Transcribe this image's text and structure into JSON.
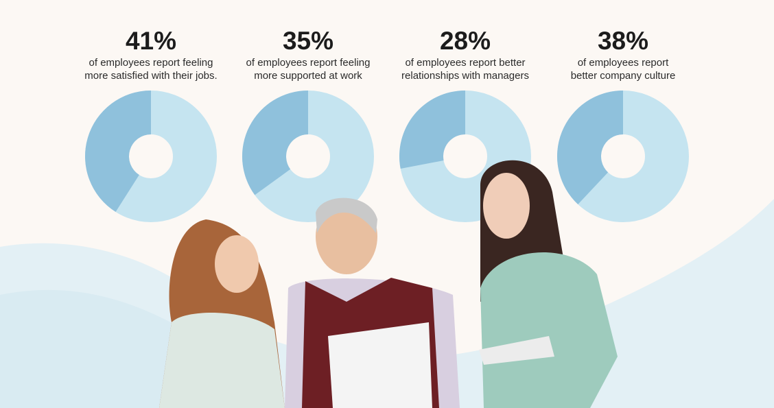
{
  "chart_data": [
    {
      "type": "donut",
      "values": [
        41
      ],
      "value_labels": [
        "41%"
      ],
      "caption": [
        "of employees report feeling",
        "more satisfied with their jobs."
      ],
      "color": "#8fc1dc",
      "track_color": "#c5e4f0"
    },
    {
      "type": "donut",
      "values": [
        35
      ],
      "value_labels": [
        "35%"
      ],
      "caption": [
        "of employees report feeling",
        "more supported at work"
      ],
      "color": "#8fc1dc",
      "track_color": "#c5e4f0"
    },
    {
      "type": "donut",
      "values": [
        28
      ],
      "value_labels": [
        "28%"
      ],
      "caption": [
        "of employees report better",
        "relationships with managers"
      ],
      "color": "#8fc1dc",
      "track_color": "#c5e4f0"
    },
    {
      "type": "donut",
      "values": [
        38
      ],
      "value_labels": [
        "38%"
      ],
      "caption": [
        "of employees report",
        "better company culture"
      ],
      "color": "#8fc1dc",
      "track_color": "#c5e4f0"
    }
  ]
}
